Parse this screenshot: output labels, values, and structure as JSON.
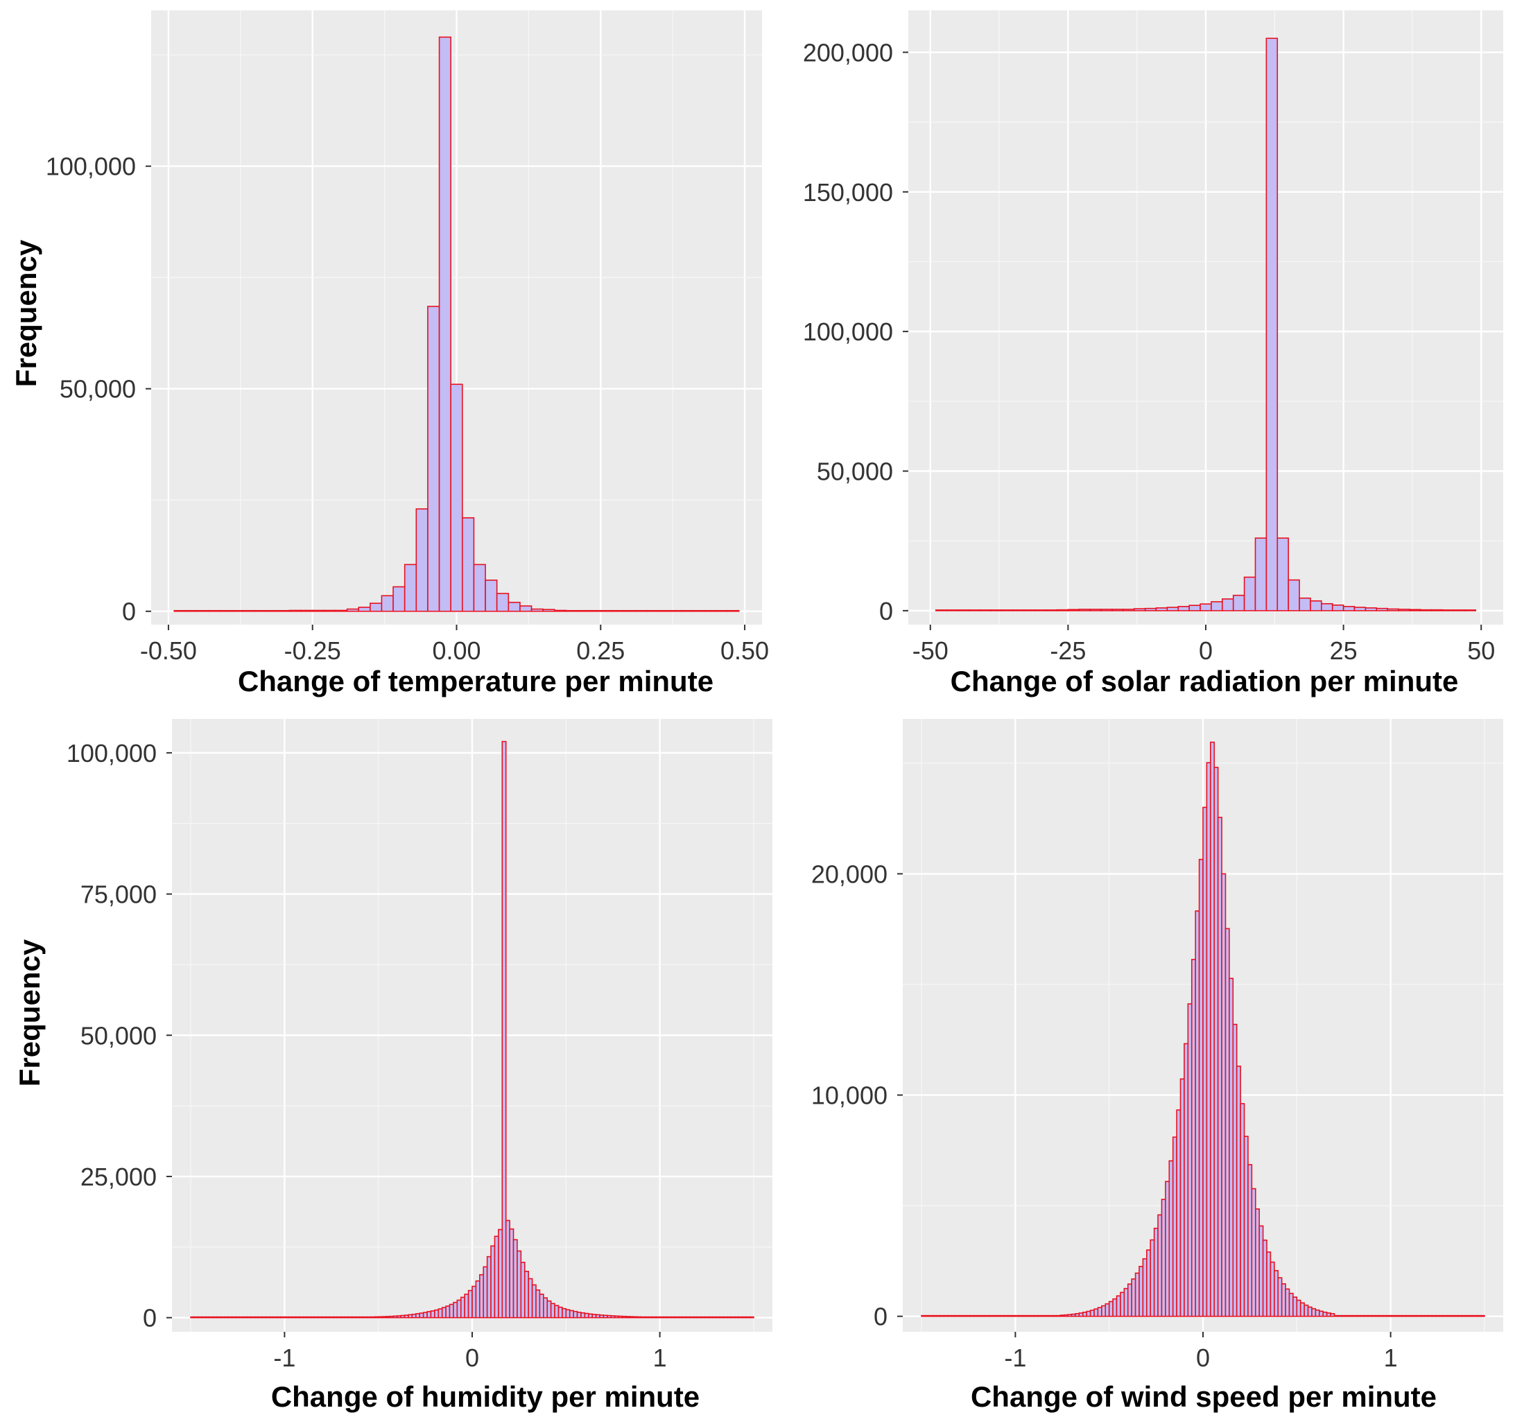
{
  "figure": {
    "panel_background": "#ebebeb",
    "bar_fill": "#c3bcf5",
    "bar_stroke": "#e8101e"
  },
  "chart_data": [
    {
      "id": "temperature",
      "type": "histogram",
      "xlabel": "Change of temperature per minute",
      "ylabel": "Frequency",
      "xlim": [
        -0.53,
        0.53
      ],
      "ylim": [
        -3000,
        135000
      ],
      "xticks": [
        -0.5,
        -0.25,
        0,
        0.25,
        0.5
      ],
      "xtick_labels": [
        "-0.50",
        "-0.25",
        "0.00",
        "0.25",
        "0.50"
      ],
      "yticks": [
        0,
        50000,
        100000
      ],
      "ytick_labels": [
        "0",
        "50,000",
        "100,000"
      ],
      "bin_start": -0.49,
      "bin_width": 0.02,
      "values": [
        50,
        50,
        50,
        50,
        50,
        50,
        50,
        50,
        50,
        50,
        200,
        200,
        200,
        200,
        200,
        500,
        900,
        1800,
        3500,
        5500,
        10500,
        23000,
        68500,
        129000,
        51000,
        21000,
        10500,
        7000,
        4000,
        2000,
        1200,
        500,
        400,
        200,
        100,
        100,
        50,
        50,
        50,
        50,
        50,
        50,
        50,
        50,
        50,
        50,
        50,
        50,
        50
      ]
    },
    {
      "id": "solar",
      "type": "histogram",
      "xlabel": "Change of solar radiation per minute",
      "ylabel": "",
      "xlim": [
        -54,
        54
      ],
      "ylim": [
        -5000,
        215000
      ],
      "xticks": [
        -50,
        -25,
        0,
        25,
        50
      ],
      "xtick_labels": [
        "-50",
        "-25",
        "0",
        "25",
        "50"
      ],
      "yticks": [
        0,
        50000,
        100000,
        150000,
        200000
      ],
      "ytick_labels": [
        "0",
        "50,000",
        "100,000",
        "150,000",
        "200,000"
      ],
      "bin_start": -49,
      "bin_width": 2,
      "values": [
        150,
        150,
        150,
        150,
        150,
        150,
        150,
        150,
        150,
        150,
        200,
        300,
        400,
        500,
        500,
        500,
        500,
        500,
        700,
        800,
        1000,
        1200,
        1500,
        1900,
        2400,
        3200,
        4200,
        5500,
        12000,
        26000,
        205000,
        26000,
        11000,
        4500,
        3500,
        2500,
        2000,
        1500,
        1200,
        1000,
        800,
        600,
        500,
        400,
        300,
        300,
        200,
        200,
        150
      ]
    },
    {
      "id": "humidity",
      "type": "histogram",
      "xlabel": "Change of humidity per minute",
      "ylabel": "Frequency",
      "xlim": [
        -1.6,
        1.6
      ],
      "ylim": [
        -2500,
        106000
      ],
      "xticks": [
        -1,
        0,
        1
      ],
      "xtick_labels": [
        "-1",
        "0",
        "1"
      ],
      "yticks": [
        0,
        25000,
        50000,
        75000,
        100000
      ],
      "ytick_labels": [
        "0",
        "25,000",
        "50,000",
        "75,000",
        "100,000"
      ],
      "bin_start": -1.5,
      "bin_width": 0.02,
      "values": [
        100,
        100,
        100,
        100,
        100,
        100,
        100,
        100,
        100,
        100,
        100,
        100,
        100,
        100,
        100,
        100,
        100,
        100,
        100,
        100,
        100,
        100,
        100,
        100,
        100,
        100,
        100,
        100,
        100,
        100,
        100,
        100,
        100,
        100,
        100,
        100,
        100,
        100,
        100,
        100,
        100,
        100,
        100,
        100,
        100,
        100,
        100,
        100,
        100,
        150,
        160,
        180,
        210,
        240,
        280,
        320,
        380,
        440,
        520,
        600,
        700,
        800,
        920,
        1070,
        1200,
        1350,
        1550,
        1800,
        2050,
        2350,
        2700,
        3100,
        3600,
        4150,
        4800,
        5550,
        6500,
        7600,
        9000,
        10800,
        12700,
        14400,
        15600,
        102000,
        17200,
        15700,
        13800,
        11800,
        9800,
        8200,
        6900,
        5800,
        4900,
        4150,
        3500,
        2950,
        2500,
        2150,
        1850,
        1600,
        1400,
        1250,
        1100,
        950,
        850,
        750,
        650,
        580,
        520,
        460,
        410,
        370,
        330,
        290,
        260,
        230,
        200,
        180,
        160,
        140,
        120,
        100,
        100,
        100,
        100,
        100,
        100,
        100,
        100,
        100,
        100,
        100,
        100,
        100,
        100,
        100,
        100,
        100,
        100,
        100,
        100,
        100,
        100,
        100,
        100,
        100,
        100,
        100,
        100,
        100
      ]
    },
    {
      "id": "wind",
      "type": "histogram",
      "xlabel": "Change of wind speed per minute",
      "ylabel": "",
      "xlim": [
        -1.6,
        1.6
      ],
      "ylim": [
        -700,
        27000
      ],
      "xticks": [
        -1,
        0,
        1
      ],
      "xtick_labels": [
        "-1",
        "0",
        "1"
      ],
      "yticks": [
        0,
        10000,
        20000
      ],
      "ytick_labels": [
        "0",
        "10,000",
        "20,000"
      ],
      "bin_start": -1.5,
      "bin_width": 0.02,
      "values": [
        15,
        15,
        15,
        15,
        15,
        15,
        15,
        15,
        15,
        15,
        15,
        15,
        15,
        15,
        15,
        15,
        15,
        15,
        15,
        15,
        15,
        15,
        15,
        15,
        15,
        15,
        15,
        15,
        15,
        15,
        15,
        15,
        15,
        15,
        15,
        15,
        15,
        50,
        62,
        77,
        96,
        120,
        148,
        183,
        224,
        272,
        330,
        396,
        474,
        563,
        666,
        785,
        922,
        1077,
        1255,
        1457,
        1688,
        1952,
        2254,
        2599,
        2996,
        3452,
        3978,
        4584,
        5284,
        6093,
        7026,
        8098,
        9325,
        10727,
        12322,
        14121,
        16127,
        18320,
        20650,
        23004,
        25022,
        25949,
        24810,
        22550,
        20000,
        17523,
        15273,
        13194,
        11303,
        9612,
        8132,
        6854,
        5768,
        4852,
        4085,
        3443,
        2904,
        2450,
        2066,
        1742,
        1467,
        1234,
        1036,
        868,
        726,
        605,
        503,
        417,
        344,
        282,
        230,
        186,
        150,
        120,
        15,
        15,
        15,
        15,
        15,
        15,
        15,
        15,
        15,
        15,
        15,
        15,
        15,
        15,
        15,
        15,
        15,
        15,
        15,
        15,
        15,
        15,
        15,
        15,
        15,
        15,
        15,
        15,
        15,
        15,
        15,
        15,
        15,
        15,
        15,
        15,
        15,
        15,
        15,
        15
      ]
    }
  ]
}
